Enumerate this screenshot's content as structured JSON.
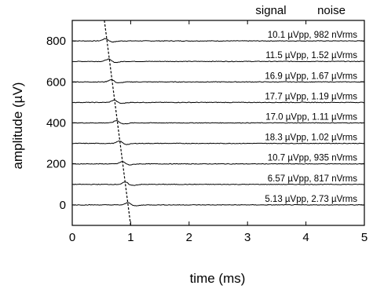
{
  "chart_data": {
    "type": "line",
    "xlabel": "time (ms)",
    "ylabel": "amplitude (µV)",
    "xlim": [
      0,
      5
    ],
    "ylim": [
      -100,
      900
    ],
    "xticks": [
      0,
      1,
      2,
      3,
      4,
      5
    ],
    "yticks": [
      0,
      200,
      400,
      600,
      800
    ],
    "grid": false,
    "column_headers": {
      "signal": "signal",
      "noise": "noise"
    },
    "series": [
      {
        "offset": 800,
        "peak_time": 0.57,
        "signal": "10.1 µVpp",
        "noise": "982 nVrms",
        "label": "10.1 µVpp,  982 nVrms"
      },
      {
        "offset": 700,
        "peak_time": 0.62,
        "signal": "11.5 µVpp",
        "noise": "1.52 µVrms",
        "label": "11.5 µVpp,  1.52 µVrms"
      },
      {
        "offset": 600,
        "peak_time": 0.67,
        "signal": "16.9 µVpp",
        "noise": "1.67 µVrms",
        "label": "16.9 µVpp,  1.67 µVrms"
      },
      {
        "offset": 500,
        "peak_time": 0.72,
        "signal": "17.7 µVpp",
        "noise": "1.19 µVrms",
        "label": "17.7 µVpp,  1.19 µVrms"
      },
      {
        "offset": 400,
        "peak_time": 0.76,
        "signal": "17.0 µVpp",
        "noise": "1.11 µVrms",
        "label": "17.0 µVpp,  1.11 µVrms"
      },
      {
        "offset": 300,
        "peak_time": 0.81,
        "signal": "18.3 µVpp",
        "noise": "1.02 µVrms",
        "label": "18.3 µVpp,  1.02 µVrms"
      },
      {
        "offset": 200,
        "peak_time": 0.86,
        "signal": "10.7 µVpp",
        "noise": "935 nVrms",
        "label": "10.7 µVpp,  935 nVrms"
      },
      {
        "offset": 100,
        "peak_time": 0.91,
        "signal": "6.57 µVpp",
        "noise": "817 nVrms",
        "label": "6.57 µVpp,  817 nVrms"
      },
      {
        "offset": 0,
        "peak_time": 0.96,
        "signal": "5.13 µVpp",
        "noise": "2.73 µVrms",
        "label": "5.13 µVpp,  2.73 µVrms"
      }
    ],
    "dashed_line": {
      "points": [
        [
          0.55,
          900
        ],
        [
          1.0,
          -100
        ]
      ]
    }
  }
}
